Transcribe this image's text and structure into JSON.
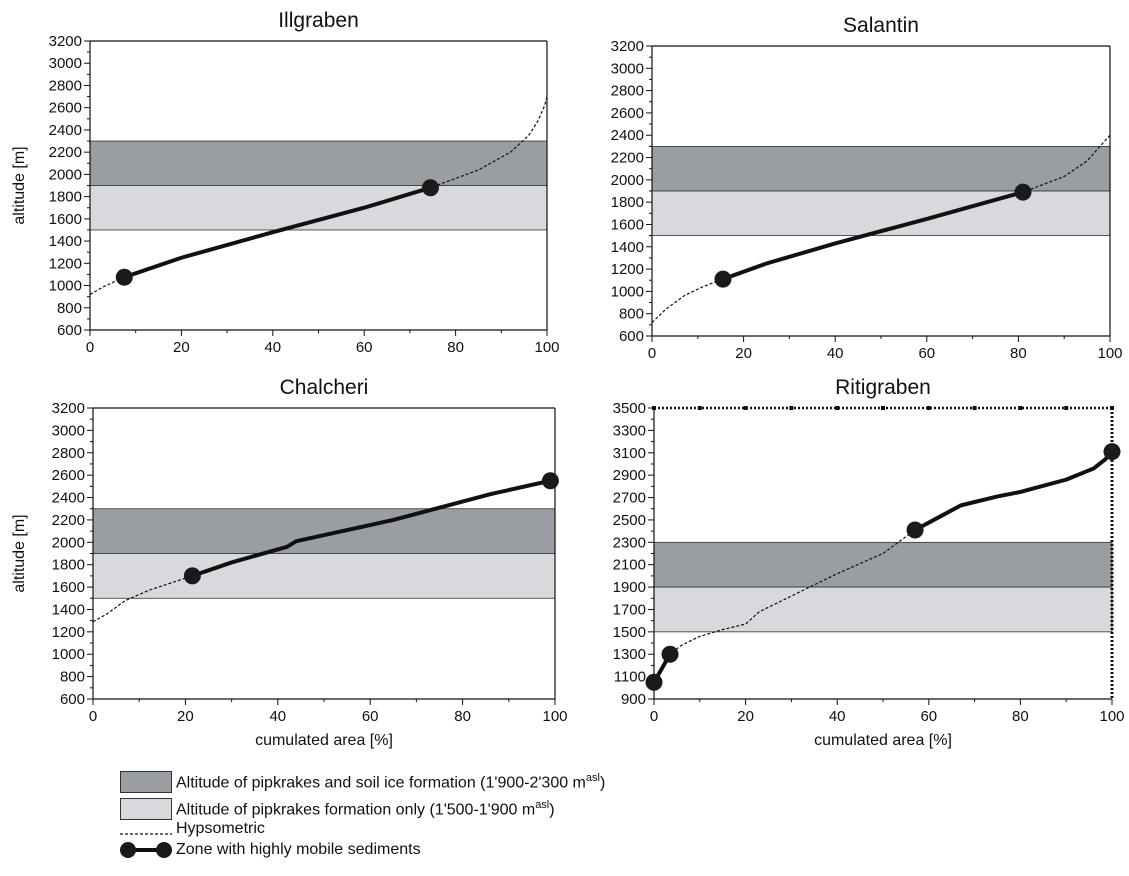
{
  "chart_data": [
    {
      "type": "line",
      "title": "Illgraben",
      "xlabel": "",
      "ylabel": "altitude [m]",
      "xlim": [
        0,
        100
      ],
      "ylim": [
        600,
        3200
      ],
      "xticks": [
        "0",
        "20",
        "40",
        "60",
        "80",
        "100"
      ],
      "yticks": [
        "600",
        "800",
        "1000",
        "1200",
        "1400",
        "1600",
        "1800",
        "2000",
        "2200",
        "2400",
        "2600",
        "2800",
        "3000",
        "3200"
      ],
      "bands": [
        {
          "name": "pipkrakes-and-soil-ice",
          "from": 1900,
          "to": 2300,
          "color": "#9a9ea2"
        },
        {
          "name": "pipkrakes-only",
          "from": 1500,
          "to": 1900,
          "color": "#d7d9dd"
        }
      ],
      "hypsometric": {
        "x": [
          0,
          3,
          7.5,
          20,
          40,
          60,
          74.5,
          85,
          92,
          96,
          98,
          99.5,
          100
        ],
        "y": [
          920,
          990,
          1075,
          1250,
          1480,
          1700,
          1880,
          2040,
          2200,
          2350,
          2480,
          2620,
          2700
        ]
      },
      "mobile_zone": {
        "x": [
          7.5,
          20,
          40,
          60,
          74.5
        ],
        "y": [
          1075,
          1250,
          1480,
          1700,
          1880
        ]
      }
    },
    {
      "type": "line",
      "title": "Salantin",
      "xlabel": "",
      "ylabel": "",
      "xlim": [
        0,
        100
      ],
      "ylim": [
        600,
        3200
      ],
      "xticks": [
        "0",
        "20",
        "40",
        "60",
        "80",
        "100"
      ],
      "yticks": [
        "600",
        "800",
        "1000",
        "1200",
        "1400",
        "1600",
        "1800",
        "2000",
        "2200",
        "2400",
        "2600",
        "2800",
        "3000",
        "3200"
      ],
      "bands": [
        {
          "name": "pipkrakes-and-soil-ice",
          "from": 1900,
          "to": 2300,
          "color": "#9a9ea2"
        },
        {
          "name": "pipkrakes-only",
          "from": 1500,
          "to": 1900,
          "color": "#d7d9dd"
        }
      ],
      "hypsometric": {
        "x": [
          0,
          3,
          7,
          11,
          15.5,
          25,
          40,
          60,
          81,
          90,
          95,
          100
        ],
        "y": [
          720,
          840,
          960,
          1040,
          1110,
          1250,
          1430,
          1650,
          1890,
          2030,
          2170,
          2400
        ]
      },
      "mobile_zone": {
        "x": [
          15.5,
          25,
          40,
          60,
          81
        ],
        "y": [
          1110,
          1250,
          1430,
          1650,
          1890
        ]
      }
    },
    {
      "type": "line",
      "title": "Chalcheri",
      "xlabel": "cumulated area [%]",
      "ylabel": "altitude [m]",
      "xlim": [
        0,
        100
      ],
      "ylim": [
        600,
        3200
      ],
      "xticks": [
        "0",
        "20",
        "40",
        "60",
        "80",
        "100"
      ],
      "yticks": [
        "600",
        "800",
        "1000",
        "1200",
        "1400",
        "1600",
        "1800",
        "2000",
        "2200",
        "2400",
        "2600",
        "2800",
        "3000",
        "3200"
      ],
      "bands": [
        {
          "name": "pipkrakes-and-soil-ice",
          "from": 1900,
          "to": 2300,
          "color": "#9a9ea2"
        },
        {
          "name": "pipkrakes-only",
          "from": 1500,
          "to": 1900,
          "color": "#d7d9dd"
        }
      ],
      "hypsometric": {
        "x": [
          0,
          3,
          5,
          7,
          12,
          21.5,
          30,
          42,
          44,
          65,
          86,
          99
        ],
        "y": [
          1290,
          1360,
          1420,
          1480,
          1570,
          1700,
          1820,
          1960,
          2010,
          2200,
          2430,
          2550
        ]
      },
      "mobile_zone": {
        "x": [
          21.5,
          30,
          42,
          44,
          65,
          86,
          99
        ],
        "y": [
          1700,
          1820,
          1960,
          2010,
          2200,
          2430,
          2550
        ]
      }
    },
    {
      "type": "line",
      "title": "Ritigraben",
      "xlabel": "cumulated area [%]",
      "ylabel": "",
      "xlim": [
        0,
        100
      ],
      "ylim": [
        900,
        3500
      ],
      "xticks": [
        "0",
        "20",
        "40",
        "60",
        "80",
        "100"
      ],
      "yticks": [
        "900",
        "1100",
        "1300",
        "1500",
        "1700",
        "1900",
        "2100",
        "2300",
        "2500",
        "2700",
        "2900",
        "3100",
        "3300",
        "3500"
      ],
      "bands": [
        {
          "name": "pipkrakes-and-soil-ice",
          "from": 1900,
          "to": 2300,
          "color": "#9a9ea2"
        },
        {
          "name": "pipkrakes-only",
          "from": 1500,
          "to": 1900,
          "color": "#d7d9dd"
        }
      ],
      "hypsometric": {
        "x": [
          0,
          3.5,
          6,
          10,
          15,
          20,
          23,
          30,
          40,
          50,
          57
        ],
        "y": [
          1050,
          1300,
          1380,
          1460,
          1520,
          1570,
          1680,
          1820,
          2020,
          2200,
          2410
        ]
      },
      "mobile_zone": [
        {
          "x": [
            0,
            3.5
          ],
          "y": [
            1050,
            1300
          ]
        },
        {
          "x": [
            57,
            62,
            67,
            75,
            80,
            90,
            96,
            98.5,
            100
          ],
          "y": [
            2410,
            2520,
            2630,
            2710,
            2750,
            2860,
            2960,
            3040,
            3110
          ]
        }
      ],
      "right_border_dashed": true
    }
  ],
  "legend": {
    "dark_band_label": "Altitude of pipkrakes and soil ice formation  (1'900-2'300 m",
    "dark_band_sup": "asl",
    "dark_band_close": ")",
    "light_band_label": "Altitude of pipkrakes formation only (1'500-1'900 m",
    "light_band_sup": "asl",
    "light_band_close": ")",
    "hypsometric_label": "Hypsometric",
    "mobile_label": "Zone with highly mobile sediments"
  }
}
